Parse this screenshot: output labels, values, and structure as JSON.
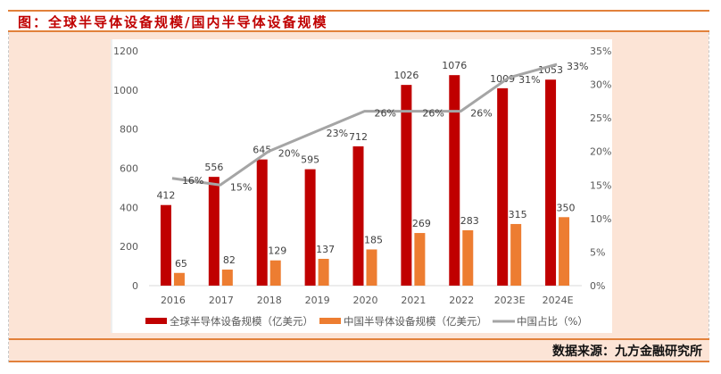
{
  "header": {
    "title": "图：全球半导体设备规模/国内半导体设备规模"
  },
  "footer": {
    "source": "数据来源：九方金融研究所"
  },
  "colors": {
    "global": "#C00000",
    "china": "#ED7D31",
    "share": "#A5A5A5",
    "frame": "#E2813B",
    "band": "#FCE4D6"
  },
  "chart_data": {
    "type": "bar",
    "title": "全球半导体设备规模/国内半导体设备规模",
    "categories": [
      "2016",
      "2017",
      "2018",
      "2019",
      "2020",
      "2021",
      "2022",
      "2023E",
      "2024E"
    ],
    "series": [
      {
        "name": "全球半导体设备规模（亿美元）",
        "type": "bar",
        "axis": "left",
        "values": [
          412,
          556,
          645,
          595,
          712,
          1026,
          1076,
          1009,
          1053
        ]
      },
      {
        "name": "中国半导体设备规模（亿美元）",
        "type": "bar",
        "axis": "left",
        "values": [
          65,
          82,
          129,
          137,
          185,
          269,
          283,
          315,
          350
        ]
      },
      {
        "name": "中国占比（%）",
        "type": "line",
        "axis": "right",
        "values": [
          16,
          15,
          20,
          23,
          26,
          26,
          26,
          31,
          33
        ],
        "labels": [
          "16%",
          "15%",
          "20%",
          "23%",
          "26%",
          "26%",
          "26%",
          "31%",
          "33%"
        ]
      }
    ],
    "left_axis": {
      "ylim": [
        0,
        1200
      ],
      "ticks": [
        "0",
        "200",
        "400",
        "600",
        "800",
        "1000",
        "1200"
      ]
    },
    "right_axis": {
      "ylim": [
        0,
        35
      ],
      "ticks": [
        "0%",
        "5%",
        "10%",
        "15%",
        "20%",
        "25%",
        "30%",
        "35%"
      ]
    },
    "xlabel": "",
    "ylabel": "",
    "grid": false,
    "legend": "bottom"
  }
}
